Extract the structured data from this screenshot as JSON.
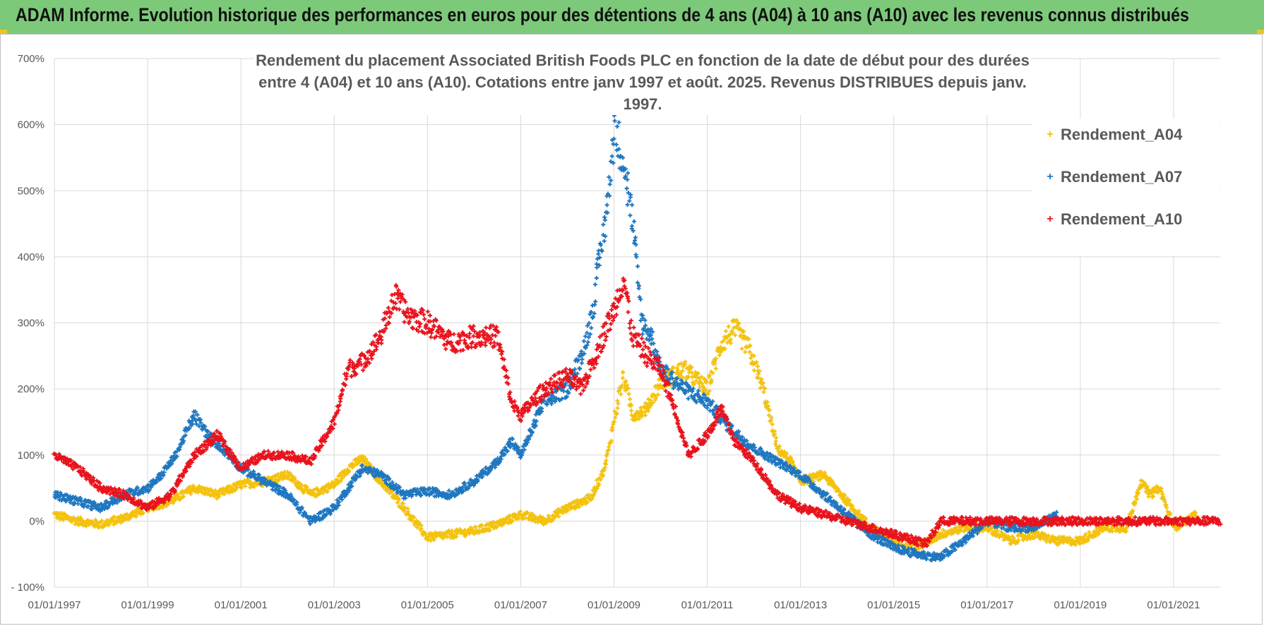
{
  "header": {
    "title": "ADAM Informe. Evolution historique des performances en euros pour des détentions de 4 ans (A04) à 10 ans (A10) avec les revenus connus distribués"
  },
  "colors": {
    "header_bg": "#7dc97a",
    "accent": "#f2c31c",
    "A04": "#f4c20d",
    "A07": "#1f77c0",
    "A10": "#e8131c"
  },
  "chart_data": {
    "type": "scatter",
    "title": "Rendement du placement Associated British Foods PLC en fonction de la date de début pour des durées entre 4 (A04) et 10 ans (A10).  Cotations entre janv 1997 et août. 2025. Revenus DISTRIBUES depuis janv. 1997.",
    "title_lines": [
      "Rendement du placement Associated British Foods PLC en fonction de la date de début pour des durées",
      "entre 4 (A04) et 10 ans (A10).  Cotations entre janv 1997 et août. 2025. Revenus DISTRIBUES depuis janv. 1997."
    ],
    "xlabel": "",
    "ylabel": "",
    "x_range": [
      "01/01/1997",
      "01/01/2022"
    ],
    "ylim": [
      -100,
      700
    ],
    "y_ticks": [
      -100,
      0,
      100,
      200,
      300,
      400,
      500,
      600,
      700
    ],
    "y_tick_labels": [
      "- 100%",
      "0%",
      "100%",
      "200%",
      "300%",
      "400%",
      "500%",
      "600%",
      "700%"
    ],
    "x_tick_labels": [
      "01/01/1997",
      "01/01/1999",
      "01/01/2001",
      "01/01/2003",
      "01/01/2005",
      "01/01/2007",
      "01/01/2009",
      "01/01/2011",
      "01/01/2013",
      "01/01/2015",
      "01/01/2017",
      "01/01/2019",
      "01/01/2021"
    ],
    "marker": "+",
    "grid": true,
    "legend_position": "right",
    "series": [
      {
        "name": "Rendement_A04",
        "color": "#f4c20d",
        "x": [
          1997.0,
          1997.5,
          1998.0,
          1998.5,
          1999.0,
          1999.5,
          2000.0,
          2000.5,
          2001.0,
          2001.5,
          2002.0,
          2002.5,
          2003.0,
          2003.3,
          2003.6,
          2004.0,
          2004.5,
          2005.0,
          2005.5,
          2006.0,
          2006.5,
          2007.0,
          2007.5,
          2008.0,
          2008.5,
          2008.8,
          2009.0,
          2009.2,
          2009.4,
          2009.7,
          2010.0,
          2010.5,
          2011.0,
          2011.3,
          2011.6,
          2011.9,
          2012.2,
          2012.5,
          2012.8,
          2013.0,
          2013.5,
          2014.0,
          2014.5,
          2015.0,
          2015.5,
          2016.0,
          2016.5,
          2017.0,
          2017.5,
          2018.0,
          2018.5,
          2019.0,
          2019.5,
          2020.0,
          2020.3,
          2020.5,
          2020.7,
          2021.0,
          2021.5
        ],
        "values": [
          10,
          0,
          -5,
          5,
          20,
          30,
          50,
          40,
          55,
          60,
          70,
          40,
          55,
          80,
          95,
          60,
          20,
          -25,
          -20,
          -15,
          -5,
          10,
          0,
          20,
          35,
          80,
          150,
          220,
          160,
          170,
          210,
          230,
          200,
          270,
          290,
          260,
          200,
          110,
          90,
          60,
          70,
          30,
          -10,
          -30,
          -40,
          -20,
          -10,
          -10,
          -30,
          -20,
          -30,
          -30,
          -10,
          -10,
          60,
          40,
          50,
          -10,
          10
        ]
      },
      {
        "name": "Rendement_A07",
        "color": "#1f77c0",
        "x": [
          1997.0,
          1997.5,
          1998.0,
          1998.5,
          1999.0,
          1999.3,
          1999.6,
          2000.0,
          2000.3,
          2000.6,
          2001.0,
          2001.5,
          2002.0,
          2002.5,
          2003.0,
          2003.3,
          2003.6,
          2004.0,
          2004.5,
          2005.0,
          2005.5,
          2006.0,
          2006.5,
          2006.8,
          2007.0,
          2007.5,
          2008.0,
          2008.3,
          2008.5,
          2008.7,
          2008.9,
          2009.0,
          2009.2,
          2009.4,
          2009.6,
          2009.8,
          2010.0,
          2010.5,
          2011.0,
          2011.5,
          2012.0,
          2012.5,
          2013.0,
          2013.5,
          2014.0,
          2014.5,
          2015.0,
          2015.5,
          2016.0,
          2016.5,
          2017.0,
          2017.5,
          2018.0,
          2018.5
        ],
        "values": [
          40,
          30,
          20,
          40,
          50,
          70,
          100,
          160,
          130,
          110,
          80,
          60,
          40,
          0,
          20,
          50,
          80,
          70,
          40,
          45,
          40,
          60,
          90,
          120,
          100,
          180,
          200,
          250,
          300,
          400,
          500,
          600,
          550,
          450,
          300,
          280,
          230,
          200,
          180,
          140,
          110,
          90,
          70,
          40,
          10,
          -20,
          -40,
          -50,
          -55,
          -30,
          0,
          -10,
          -10,
          10
        ]
      },
      {
        "name": "Rendement_A10",
        "color": "#e8131c",
        "x": [
          1997.0,
          1997.5,
          1998.0,
          1998.5,
          1999.0,
          1999.5,
          2000.0,
          2000.5,
          2001.0,
          2001.5,
          2002.0,
          2002.5,
          2003.0,
          2003.3,
          2003.6,
          2004.0,
          2004.3,
          2004.6,
          2005.0,
          2005.5,
          2006.0,
          2006.5,
          2006.8,
          2007.0,
          2007.5,
          2008.0,
          2008.3,
          2008.6,
          2009.0,
          2009.2,
          2009.4,
          2009.7,
          2010.0,
          2010.3,
          2010.6,
          2011.0,
          2011.3,
          2011.6,
          2012.0,
          2012.5,
          2013.0,
          2013.5,
          2014.0,
          2014.5,
          2015.0,
          2015.5,
          2015.7,
          2016.0,
          2017.0,
          2018.0,
          2019.0,
          2020.0,
          2021.0,
          2022.0
        ],
        "values": [
          100,
          80,
          50,
          40,
          20,
          40,
          100,
          130,
          80,
          100,
          100,
          90,
          150,
          230,
          240,
          280,
          340,
          310,
          300,
          270,
          280,
          280,
          180,
          160,
          200,
          220,
          200,
          250,
          320,
          370,
          280,
          250,
          230,
          170,
          100,
          130,
          170,
          120,
          90,
          40,
          20,
          10,
          0,
          -10,
          -20,
          -30,
          -35,
          0,
          0,
          0,
          0,
          0,
          0,
          0
        ]
      }
    ]
  }
}
